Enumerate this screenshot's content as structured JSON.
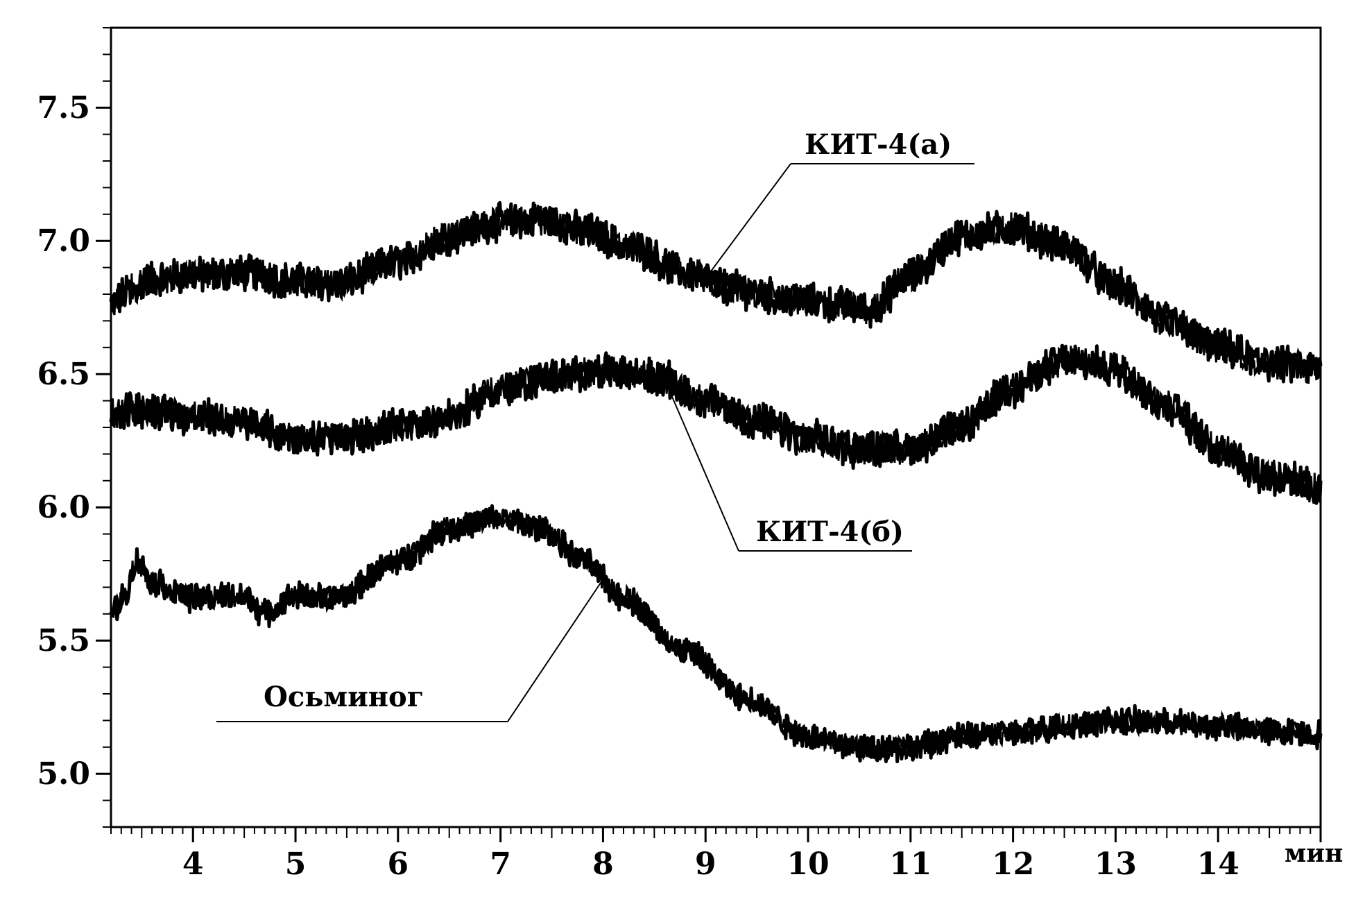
{
  "chart_data": {
    "type": "line",
    "title": "",
    "xlabel": "",
    "ylabel": "",
    "x_unit": "мин",
    "xlim": [
      3.2,
      15.0
    ],
    "ylim": [
      4.8,
      7.8
    ],
    "x_ticks": [
      4,
      5,
      6,
      7,
      8,
      9,
      10,
      11,
      12,
      13,
      14
    ],
    "x_tick_labels": [
      "4",
      "5",
      "6",
      "7",
      "8",
      "9",
      "10",
      "11",
      "12",
      "13",
      "14"
    ],
    "y_ticks": [
      5.0,
      5.5,
      6.0,
      6.5,
      7.0,
      7.5
    ],
    "y_tick_labels": [
      "5.0",
      "5.5",
      "6.0",
      "6.5",
      "7.0",
      "7.5"
    ],
    "grid": false,
    "legend": "none",
    "series": [
      {
        "name": "КИТ-4(а)",
        "color": "#000000",
        "noise": 0.06,
        "x": [
          3.2,
          3.4,
          3.6,
          4.0,
          4.5,
          5.0,
          5.4,
          6.0,
          6.5,
          7.0,
          7.4,
          7.8,
          8.3,
          8.8,
          9.3,
          9.8,
          10.3,
          10.6,
          11.0,
          11.5,
          12.0,
          12.5,
          13.0,
          13.5,
          14.0,
          14.5,
          15.0
        ],
        "y": [
          6.76,
          6.82,
          6.86,
          6.87,
          6.88,
          6.85,
          6.84,
          6.92,
          7.02,
          7.07,
          7.08,
          7.04,
          6.97,
          6.88,
          6.82,
          6.78,
          6.76,
          6.74,
          6.87,
          7.02,
          7.05,
          6.98,
          6.83,
          6.7,
          6.6,
          6.54,
          6.52
        ]
      },
      {
        "name": "КИТ-4(б)",
        "color": "#000000",
        "noise": 0.06,
        "x": [
          3.2,
          3.5,
          4.0,
          4.5,
          5.0,
          5.5,
          6.0,
          6.5,
          7.0,
          7.5,
          8.0,
          8.5,
          9.0,
          9.5,
          10.0,
          10.5,
          11.0,
          11.5,
          12.0,
          12.5,
          13.0,
          13.5,
          14.0,
          14.5,
          15.0
        ],
        "y": [
          6.35,
          6.37,
          6.34,
          6.32,
          6.26,
          6.26,
          6.3,
          6.34,
          6.44,
          6.49,
          6.51,
          6.49,
          6.4,
          6.32,
          6.26,
          6.22,
          6.22,
          6.3,
          6.45,
          6.55,
          6.52,
          6.38,
          6.22,
          6.12,
          6.07
        ]
      },
      {
        "name": "Осьминог",
        "color": "#000000",
        "noise": 0.045,
        "x": [
          3.2,
          3.35,
          3.45,
          3.6,
          4.0,
          4.5,
          4.7,
          5.0,
          5.4,
          6.0,
          6.5,
          7.0,
          7.4,
          7.8,
          8.2,
          8.8,
          9.4,
          10.0,
          10.5,
          11.0,
          11.5,
          12.0,
          12.5,
          13.0,
          13.5,
          14.0,
          14.5,
          15.0
        ],
        "y": [
          5.6,
          5.68,
          5.8,
          5.72,
          5.66,
          5.67,
          5.6,
          5.67,
          5.66,
          5.8,
          5.92,
          5.96,
          5.92,
          5.8,
          5.66,
          5.46,
          5.28,
          5.14,
          5.1,
          5.1,
          5.14,
          5.15,
          5.18,
          5.2,
          5.19,
          5.18,
          5.16,
          5.15
        ]
      }
    ],
    "annotations": [
      {
        "text": "КИТ-4(а)",
        "target_series": 0,
        "target_x": 9.0
      },
      {
        "text": "КИТ-4(б)",
        "target_series": 1,
        "target_x": 8.6
      },
      {
        "text": "Осьминог",
        "target_series": 2,
        "target_x": 8.0
      }
    ]
  }
}
